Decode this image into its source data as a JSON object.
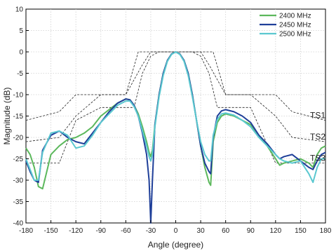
{
  "chart_data": {
    "type": "line",
    "xlabel": "Angle (degree)",
    "ylabel": "Magnitude (dB)",
    "xlim": [
      -180,
      180
    ],
    "ylim": [
      -40,
      10
    ],
    "xticks": [
      -180,
      -150,
      -120,
      -90,
      -60,
      -30,
      0,
      30,
      60,
      90,
      120,
      150,
      180
    ],
    "yticks": [
      10,
      5,
      0,
      -5,
      -10,
      -15,
      -20,
      -25,
      -30,
      -35,
      -40
    ],
    "grid": true,
    "legend_position": "top-right",
    "series": [
      {
        "name": "2400 MHz",
        "color": "#5cb85c",
        "x": [
          -180,
          -175,
          -170,
          -165,
          -160,
          -150,
          -140,
          -130,
          -120,
          -110,
          -100,
          -90,
          -80,
          -70,
          -60,
          -55,
          -50,
          -45,
          -40,
          -35,
          -32,
          -30,
          -28,
          -25,
          -20,
          -15,
          -10,
          -5,
          0,
          5,
          10,
          15,
          20,
          25,
          30,
          35,
          40,
          42,
          45,
          50,
          55,
          60,
          70,
          80,
          90,
          100,
          110,
          120,
          125,
          130,
          140,
          150,
          160,
          165,
          170,
          175,
          180
        ],
        "values": [
          -22.5,
          -24,
          -27,
          -31.5,
          -32,
          -24,
          -22,
          -20.5,
          -20,
          -19,
          -17.5,
          -15,
          -13.5,
          -12,
          -11,
          -11.2,
          -12.5,
          -14.5,
          -17.5,
          -21,
          -23.5,
          -24.5,
          -23,
          -17,
          -10,
          -5,
          -2,
          -0.5,
          0,
          -0.5,
          -2,
          -5,
          -10,
          -16,
          -22,
          -27,
          -30.5,
          -31.2,
          -21,
          -16.5,
          -15,
          -14.5,
          -15,
          -16,
          -17,
          -19.5,
          -22,
          -25,
          -26.5,
          -26,
          -25.5,
          -25,
          -26,
          -27,
          -24,
          -22.5,
          -22
        ]
      },
      {
        "name": "2450 MHz",
        "color": "#1f3f99",
        "x": [
          -180,
          -175,
          -170,
          -165,
          -160,
          -150,
          -140,
          -130,
          -120,
          -110,
          -100,
          -90,
          -80,
          -70,
          -60,
          -55,
          -50,
          -45,
          -40,
          -35,
          -32,
          -30,
          -28,
          -25,
          -20,
          -15,
          -10,
          -5,
          0,
          5,
          10,
          15,
          20,
          25,
          30,
          35,
          40,
          42,
          45,
          50,
          55,
          60,
          70,
          80,
          90,
          100,
          110,
          120,
          125,
          130,
          140,
          150,
          160,
          165,
          170,
          175,
          180
        ],
        "values": [
          -25.5,
          -28,
          -30,
          -30.5,
          -23,
          -19.5,
          -18.5,
          -20,
          -21,
          -21.5,
          -19,
          -16.5,
          -14,
          -12,
          -11,
          -11.2,
          -12.5,
          -15,
          -19,
          -24,
          -30,
          -40,
          -30,
          -17,
          -10,
          -5,
          -2,
          -0.5,
          0,
          -0.5,
          -2,
          -5,
          -10,
          -16,
          -22,
          -26,
          -28,
          -28.5,
          -20,
          -15,
          -13.8,
          -13.5,
          -14,
          -15,
          -16.5,
          -19.5,
          -21.5,
          -24,
          -25,
          -24.5,
          -24,
          -25.5,
          -27,
          -27.5,
          -25.5,
          -24,
          -23.5
        ]
      },
      {
        "name": "2500 MHz",
        "color": "#5bc8d0",
        "x": [
          -180,
          -175,
          -170,
          -165,
          -160,
          -150,
          -140,
          -130,
          -120,
          -110,
          -100,
          -90,
          -80,
          -70,
          -60,
          -55,
          -50,
          -45,
          -40,
          -35,
          -32,
          -30,
          -28,
          -25,
          -20,
          -15,
          -10,
          -5,
          0,
          5,
          10,
          15,
          20,
          25,
          30,
          35,
          40,
          42,
          45,
          50,
          55,
          60,
          70,
          80,
          90,
          100,
          110,
          120,
          125,
          130,
          140,
          150,
          160,
          165,
          170,
          175,
          180
        ],
        "values": [
          -25,
          -27.5,
          -30,
          -30,
          -23.5,
          -19,
          -18.5,
          -19.5,
          -22.5,
          -22,
          -19.5,
          -16.5,
          -14.5,
          -12.5,
          -11.5,
          -11.5,
          -12.8,
          -15,
          -18.5,
          -22,
          -24.5,
          -25.5,
          -24,
          -17.5,
          -10.5,
          -5.5,
          -2.2,
          -0.6,
          0,
          -0.6,
          -2.2,
          -5.5,
          -10.5,
          -16,
          -21,
          -24,
          -25.5,
          -25.5,
          -19.5,
          -15.8,
          -14.5,
          -14.3,
          -14.8,
          -16,
          -17.5,
          -20,
          -22,
          -24,
          -25,
          -25.5,
          -26,
          -25.5,
          -28.5,
          -30.5,
          -27,
          -25,
          -25
        ]
      }
    ],
    "masks": [
      {
        "name": "TS1",
        "x": [
          -180,
          -140,
          -120,
          -90,
          -60,
          -45,
          -35,
          -30,
          30,
          35,
          45,
          60,
          90,
          120,
          140,
          180
        ],
        "values": [
          -16,
          -14,
          -10,
          -10,
          -10,
          0,
          0,
          0,
          0,
          0,
          0,
          -10,
          -10,
          -10,
          -14,
          -16
        ]
      },
      {
        "name": "TS2",
        "x": [
          -180,
          -140,
          -120,
          -90,
          -60,
          -40,
          -30,
          -20,
          20,
          30,
          40,
          60,
          90,
          120,
          140,
          180
        ],
        "values": [
          -21,
          -20,
          -15,
          -10,
          -10,
          -3,
          0,
          0,
          0,
          0,
          -3,
          -10,
          -10,
          -15,
          -20,
          -21
        ]
      },
      {
        "name": "TS3",
        "x": [
          -180,
          -140,
          -120,
          -90,
          -50,
          -40,
          -30,
          -20,
          20,
          30,
          40,
          50,
          90,
          120,
          140,
          180
        ],
        "values": [
          -26,
          -26,
          -16,
          -13,
          -13,
          -5,
          -1,
          0,
          0,
          -1,
          -5,
          -13,
          -13,
          -26,
          -26,
          -26
        ]
      }
    ]
  }
}
